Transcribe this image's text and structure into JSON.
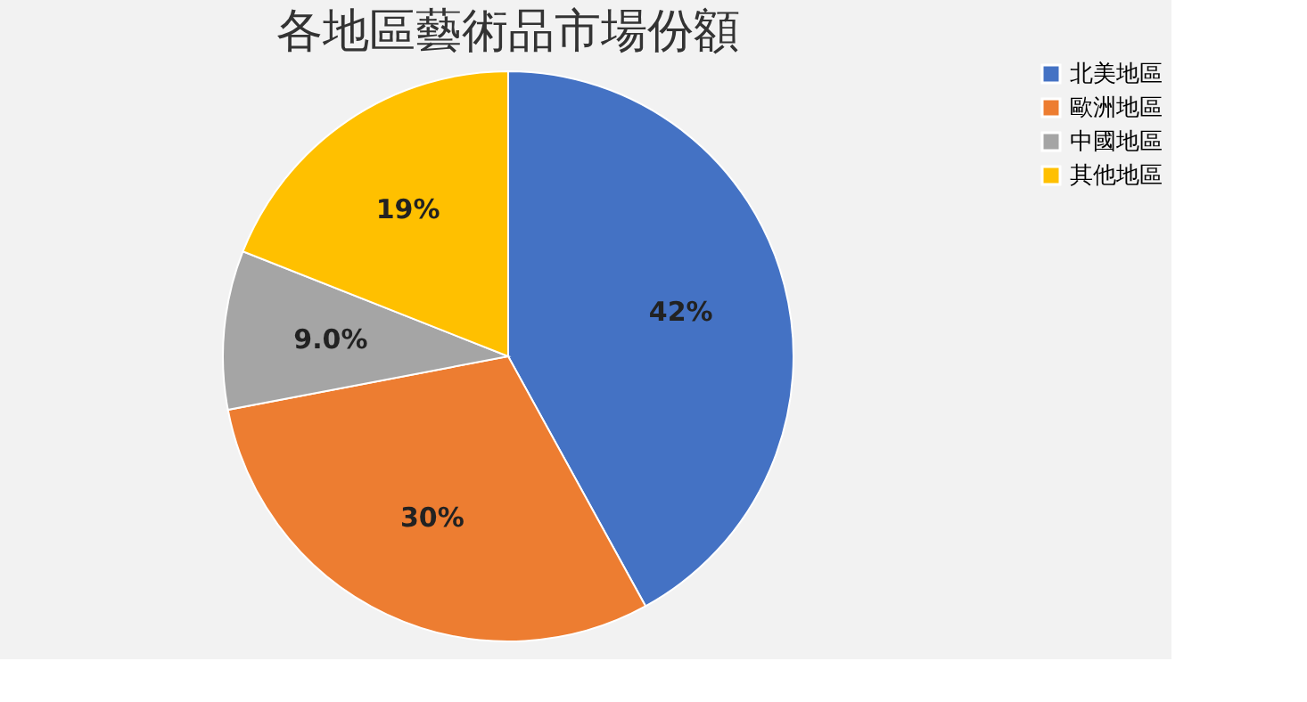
{
  "chart_data": {
    "type": "pie",
    "title": "各地區藝術品市場份額",
    "categories": [
      "北美地區",
      "歐洲地區",
      "中國地區",
      "其他地區"
    ],
    "values": [
      42,
      30,
      9.0,
      19
    ],
    "value_labels": [
      "42%",
      "30%",
      "9.0%",
      "19%"
    ],
    "colors": [
      "#4472c4",
      "#ed7d31",
      "#a5a5a5",
      "#ffc000"
    ],
    "legend": "right"
  }
}
